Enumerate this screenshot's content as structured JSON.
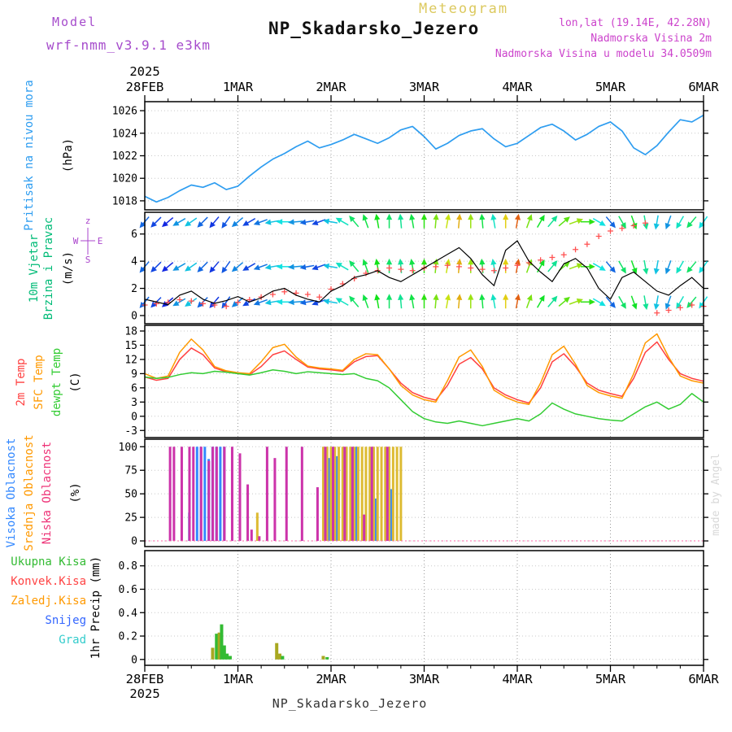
{
  "header": {
    "app": "Meteogram",
    "model_label": "Model",
    "model_name": "wrf-nmm_v3.9.1 e3km",
    "title": "NP_Skadarsko_Jezero",
    "lonlat": "lon,lat (19.14E, 42.28N)",
    "elevation": "Nadmorska Visina 2m",
    "model_elevation": "Nadmorska Visina u modelu 34.0509m"
  },
  "footer": {
    "title": "NP_Skadarsko_Jezero"
  },
  "watermark": "made by Angel",
  "axis": {
    "year": "2025",
    "days": [
      "28FEB",
      "1MAR",
      "2MAR",
      "3MAR",
      "4MAR",
      "5MAR",
      "6MAR"
    ],
    "hours_total": 144,
    "step_hours": 3
  },
  "panels": {
    "pressure": {
      "label": "Pritisak na nivou mora",
      "unit": "(hPa)",
      "label_color": "#2e9df0"
    },
    "wind": {
      "label1": "10m Vjetar",
      "label2": "Brzina i Pravac",
      "unit": "(m/s)",
      "label_color": "#00bb77",
      "compass": [
        "z",
        "W",
        "E",
        "S"
      ],
      "compass_color": "#aa44cc"
    },
    "temp": {
      "labels": [
        "2m Temp",
        "SFC Temp",
        "dewpt Temp"
      ],
      "label_colors": [
        "#ff4040",
        "#ff9900",
        "#33cc33"
      ],
      "unit": "(C)"
    },
    "clouds": {
      "labels": [
        "Visoka Oblacnost",
        "Srednja Oblacnost",
        "Niska Oblacnost"
      ],
      "label_colors": [
        "#3388ff",
        "#ff9900",
        "#ee3377"
      ],
      "unit": "(%)"
    },
    "precip": {
      "labels": [
        "Ukupna Kisa",
        "Konvek.Kisa",
        "Zaledj.Kisa",
        "Snijeg",
        "Grad"
      ],
      "label_colors": [
        "#33bb33",
        "#ff4444",
        "#ff9900",
        "#3366ff",
        "#33cccc"
      ],
      "unit": "1hr Precip (mm)"
    }
  },
  "chart_data": [
    {
      "id": "pressure",
      "type": "line",
      "title": "Pritisak na nivou mora",
      "ylabel": "hPa",
      "ylim": [
        1017.2,
        1026.8
      ],
      "yticks": [
        1018,
        1020,
        1022,
        1024,
        1026
      ],
      "color": "#2e9df0",
      "x_step_hours": 3,
      "values": [
        1018.4,
        1017.9,
        1018.3,
        1018.9,
        1019.4,
        1019.2,
        1019.6,
        1019.0,
        1019.3,
        1020.2,
        1021.0,
        1021.7,
        1022.2,
        1022.8,
        1023.3,
        1022.7,
        1023.0,
        1023.4,
        1023.9,
        1023.5,
        1023.1,
        1023.6,
        1024.3,
        1024.6,
        1023.7,
        1022.6,
        1023.1,
        1023.8,
        1024.2,
        1024.4,
        1023.5,
        1022.8,
        1023.1,
        1023.8,
        1024.5,
        1024.8,
        1024.2,
        1023.4,
        1023.9,
        1024.6,
        1025.0,
        1024.2,
        1022.7,
        1022.1,
        1022.9,
        1024.1,
        1025.2,
        1025.0,
        1025.6
      ]
    },
    {
      "id": "wind",
      "type": "vector",
      "title": "10m Vjetar Brzina i Pravac",
      "ylabel": "m/s",
      "ylim": [
        -0.6,
        7.6
      ],
      "yticks": [
        0,
        2,
        4,
        6
      ],
      "speed_line_color": "#000000",
      "direction_marker_color": "#ff5050",
      "x_step_hours": 3,
      "speeds": [
        1.2,
        1.0,
        0.8,
        1.5,
        1.8,
        1.2,
        0.9,
        1.1,
        1.4,
        1.0,
        1.3,
        1.8,
        2.0,
        1.5,
        1.2,
        1.0,
        1.8,
        2.2,
        2.8,
        3.0,
        3.3,
        2.8,
        2.5,
        3.0,
        3.5,
        4.0,
        4.5,
        5.0,
        4.2,
        3.0,
        2.2,
        4.8,
        5.5,
        4.0,
        3.2,
        2.5,
        3.8,
        4.2,
        3.5,
        2.0,
        1.2,
        2.8,
        3.2,
        2.5,
        1.8,
        1.5,
        2.2,
        2.8,
        2.0
      ],
      "directions_deg": [
        40,
        45,
        50,
        60,
        55,
        45,
        40,
        35,
        50,
        60,
        70,
        80,
        90,
        85,
        80,
        70,
        100,
        120,
        140,
        160,
        170,
        180,
        175,
        170,
        180,
        185,
        190,
        185,
        180,
        175,
        170,
        180,
        190,
        200,
        210,
        220,
        230,
        250,
        270,
        300,
        320,
        330,
        340,
        350,
        10,
        20,
        30,
        40,
        35
      ]
    },
    {
      "id": "temp",
      "type": "line",
      "title": "Temperature",
      "ylabel": "C",
      "ylim": [
        -4.5,
        19.2
      ],
      "yticks": [
        -3,
        0,
        3,
        6,
        9,
        12,
        15,
        18
      ],
      "x_step_hours": 3,
      "series": [
        {
          "name": "2m Temp",
          "color": "#ff4040",
          "values": [
            8.3,
            7.6,
            8.0,
            12.0,
            14.4,
            13.0,
            10.2,
            9.4,
            9.0,
            8.8,
            10.5,
            13.0,
            13.8,
            12.0,
            10.4,
            10.0,
            9.8,
            9.5,
            11.5,
            12.6,
            12.8,
            10.0,
            7.0,
            5.0,
            4.0,
            3.4,
            6.5,
            11.0,
            12.4,
            10.0,
            6.0,
            4.5,
            3.5,
            2.8,
            6.0,
            11.5,
            13.2,
            10.5,
            7.0,
            5.5,
            4.8,
            4.2,
            8.0,
            13.5,
            15.7,
            12.0,
            9.0,
            8.0,
            7.4
          ]
        },
        {
          "name": "SFC Temp",
          "color": "#ff9900",
          "values": [
            9.0,
            8.0,
            8.5,
            13.5,
            16.3,
            14.0,
            10.5,
            9.6,
            9.2,
            9.0,
            11.5,
            14.5,
            15.2,
            12.5,
            10.6,
            10.2,
            10.0,
            9.7,
            12.0,
            13.2,
            13.0,
            10.0,
            6.5,
            4.5,
            3.5,
            3.0,
            7.5,
            12.5,
            14.0,
            10.5,
            5.5,
            4.0,
            3.0,
            2.5,
            7.0,
            13.0,
            14.8,
            11.0,
            6.5,
            5.0,
            4.3,
            3.8,
            9.0,
            15.5,
            17.4,
            12.5,
            8.5,
            7.5,
            7.0
          ]
        },
        {
          "name": "dewpt Temp",
          "color": "#33cc33",
          "values": [
            8.3,
            8.0,
            8.2,
            8.8,
            9.2,
            9.0,
            9.5,
            9.3,
            9.0,
            8.7,
            9.2,
            9.8,
            9.5,
            9.0,
            9.4,
            9.2,
            9.0,
            8.8,
            9.0,
            8.0,
            7.5,
            6.0,
            3.5,
            1.0,
            -0.5,
            -1.2,
            -1.5,
            -1.0,
            -1.5,
            -2.0,
            -1.5,
            -1.0,
            -0.5,
            -1.0,
            0.5,
            2.8,
            1.5,
            0.5,
            0.0,
            -0.5,
            -0.8,
            -1.0,
            0.5,
            2.0,
            3.0,
            1.5,
            2.5,
            4.8,
            3.0
          ]
        }
      ]
    },
    {
      "id": "clouds",
      "type": "bar",
      "title": "Oblacnost",
      "ylabel": "%",
      "ylim": [
        -6,
        108
      ],
      "yticks": [
        0,
        25,
        50,
        75,
        100
      ],
      "zero_line_color": "#ff66aa",
      "series": [
        {
          "name": "Visoka Oblacnost",
          "color": "#3388ff",
          "points": [
            [
              12,
              30
            ],
            [
              14,
              100
            ],
            [
              15,
              100
            ],
            [
              16,
              100
            ],
            [
              17,
              87
            ],
            [
              18,
              100
            ],
            [
              19,
              100
            ],
            [
              20,
              100
            ],
            [
              21,
              100
            ],
            [
              48,
              88
            ],
            [
              50,
              90
            ],
            [
              52,
              35
            ],
            [
              55,
              100
            ],
            [
              60,
              45
            ],
            [
              64,
              55
            ]
          ]
        },
        {
          "name": "Srednja Oblacnost",
          "color": "#ddbb33",
          "points": [
            [
              29,
              30
            ],
            [
              46,
              100
            ],
            [
              47,
              100
            ],
            [
              48,
              100
            ],
            [
              49,
              100
            ],
            [
              50,
              100
            ],
            [
              51,
              100
            ],
            [
              52,
              100
            ],
            [
              53,
              100
            ],
            [
              54,
              100
            ],
            [
              55,
              100
            ],
            [
              56,
              100
            ],
            [
              57,
              100
            ],
            [
              58,
              100
            ],
            [
              59,
              100
            ],
            [
              60,
              100
            ],
            [
              61,
              100
            ],
            [
              62,
              100
            ],
            [
              63,
              100
            ],
            [
              64,
              100
            ],
            [
              65,
              100
            ],
            [
              66,
              100
            ]
          ]
        },
        {
          "name": "Niska Oblacnost",
          "color": "#cc33aa",
          "points": [
            [
              6,
              100
            ],
            [
              7,
              100
            ],
            [
              9,
              100
            ],
            [
              11,
              100
            ],
            [
              12,
              100
            ],
            [
              14,
              100
            ],
            [
              16,
              85
            ],
            [
              17,
              100
            ],
            [
              18,
              100
            ],
            [
              20,
              100
            ],
            [
              22,
              100
            ],
            [
              24,
              93
            ],
            [
              26,
              60
            ],
            [
              27,
              12
            ],
            [
              29,
              5
            ],
            [
              31,
              100
            ],
            [
              33,
              88
            ],
            [
              36,
              100
            ],
            [
              40,
              100
            ],
            [
              44,
              57
            ],
            [
              46,
              100
            ],
            [
              48,
              100
            ],
            [
              51,
              100
            ],
            [
              53,
              100
            ],
            [
              56,
              28
            ],
            [
              58,
              100
            ],
            [
              62,
              100
            ]
          ]
        }
      ]
    },
    {
      "id": "precip",
      "type": "bar",
      "title": "1hr Precip",
      "ylabel": "mm",
      "ylim": [
        -0.05,
        0.93
      ],
      "yticks": [
        0,
        0.2,
        0.4,
        0.6,
        0.8
      ],
      "type_colors": {
        "ukupna": "#33bb33",
        "konvek": "#ff4444",
        "zaledj": "#a8a820",
        "snijeg": "#3366ff",
        "grad": "#33cccc"
      },
      "bars": [
        {
          "h": 17.5,
          "type": "zaledj",
          "v": 0.1
        },
        {
          "h": 18.5,
          "type": "ukupna",
          "v": 0.22
        },
        {
          "h": 19.2,
          "type": "zaledj",
          "v": 0.23
        },
        {
          "h": 19.8,
          "type": "ukupna",
          "v": 0.3
        },
        {
          "h": 20.5,
          "type": "ukupna",
          "v": 0.12
        },
        {
          "h": 21.2,
          "type": "ukupna",
          "v": 0.05
        },
        {
          "h": 22,
          "type": "ukupna",
          "v": 0.03
        },
        {
          "h": 34,
          "type": "zaledj",
          "v": 0.14
        },
        {
          "h": 34.8,
          "type": "zaledj",
          "v": 0.05
        },
        {
          "h": 35.5,
          "type": "ukupna",
          "v": 0.03
        },
        {
          "h": 46,
          "type": "zaledj",
          "v": 0.03
        },
        {
          "h": 47,
          "type": "ukupna",
          "v": 0.02
        }
      ]
    }
  ]
}
